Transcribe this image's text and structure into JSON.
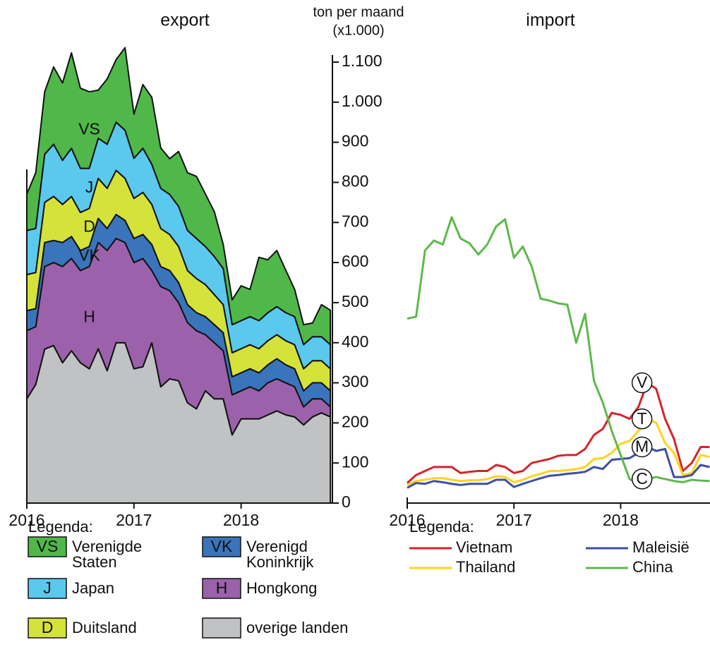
{
  "chart_data": [
    {
      "type": "stacked_area",
      "title": "export",
      "y_label_lines": [
        "ton per maand",
        "(x1.000)"
      ],
      "legend_title": "Legenda:",
      "categories": [
        "2016",
        null,
        null,
        null,
        null,
        null,
        null,
        null,
        null,
        null,
        null,
        null,
        "2017",
        null,
        null,
        null,
        null,
        null,
        null,
        null,
        null,
        null,
        null,
        null,
        "2018",
        null,
        null,
        null,
        null,
        null,
        null,
        null,
        null,
        null,
        null
      ],
      "ylim": [
        0,
        1100
      ],
      "yticks": [
        0,
        100,
        200,
        300,
        400,
        500,
        600,
        700,
        800,
        900,
        {
          "value": 1000,
          "label": "1.000"
        },
        {
          "value": 1100,
          "label": "1.100"
        }
      ],
      "series": [
        {
          "name": "overige landen",
          "color": "#c0c2c4",
          "values": [
            260,
            296,
            384,
            393,
            350,
            380,
            350,
            335,
            385,
            330,
            400,
            400,
            335,
            340,
            400,
            290,
            310,
            305,
            250,
            235,
            280,
            260,
            260,
            170,
            210,
            210,
            210,
            220,
            230,
            220,
            215,
            195,
            215,
            225,
            215
          ]
        },
        {
          "name": "Hongkong",
          "short": "H",
          "color": "#9b62ab",
          "values": [
            170,
            144,
            206,
            207,
            240,
            230,
            230,
            255,
            265,
            300,
            260,
            250,
            265,
            270,
            180,
            250,
            220,
            195,
            200,
            195,
            140,
            140,
            120,
            100,
            70,
            80,
            70,
            80,
            80,
            80,
            75,
            45,
            45,
            35,
            25
          ]
        },
        {
          "name": "Verenigd Koninkrijk",
          "short": "VK",
          "color": "#3a74bb",
          "values": [
            50,
            45,
            60,
            55,
            60,
            55,
            50,
            50,
            60,
            55,
            60,
            55,
            60,
            60,
            65,
            50,
            50,
            50,
            45,
            45,
            45,
            45,
            45,
            45,
            45,
            45,
            45,
            45,
            50,
            45,
            45,
            40,
            40,
            40,
            40
          ]
        },
        {
          "name": "Duitsland",
          "short": "D",
          "color": "#d4e23a",
          "values": [
            90,
            90,
            100,
            110,
            95,
            100,
            95,
            95,
            100,
            100,
            110,
            105,
            100,
            105,
            100,
            95,
            90,
            90,
            85,
            85,
            80,
            75,
            70,
            60,
            60,
            60,
            60,
            60,
            60,
            60,
            60,
            55,
            55,
            55,
            55
          ]
        },
        {
          "name": "Japan",
          "short": "J",
          "color": "#5bc8ee",
          "values": [
            110,
            110,
            120,
            130,
            110,
            120,
            110,
            100,
            100,
            110,
            120,
            120,
            100,
            110,
            100,
            100,
            100,
            100,
            100,
            100,
            95,
            95,
            90,
            70,
            70,
            70,
            70,
            70,
            70,
            70,
            70,
            60,
            60,
            60,
            60
          ]
        },
        {
          "name": "Verenigde Staten",
          "short": "VS",
          "color": "#4fb849",
          "values": [
            91,
            139,
            156,
            193,
            193,
            238,
            200,
            191,
            120,
            163,
            156,
            206,
            110,
            159,
            167,
            101,
            89,
            137,
            144,
            155,
            131,
            112,
            60,
            62,
            87,
            68,
            158,
            132,
            140,
            106,
            68,
            50,
            34,
            80,
            86
          ]
        }
      ]
    },
    {
      "type": "line",
      "title": "import",
      "legend_title": "Legenda:",
      "categories": [
        "2016",
        null,
        null,
        null,
        null,
        null,
        null,
        null,
        null,
        null,
        null,
        null,
        "2017",
        null,
        null,
        null,
        null,
        null,
        null,
        null,
        null,
        null,
        null,
        null,
        "2018",
        null,
        null,
        null,
        null,
        null,
        null,
        null,
        null,
        null,
        null
      ],
      "ylim": [
        0,
        1100
      ],
      "series": [
        {
          "name": "Vietnam",
          "label": "V",
          "color": "#d4252b",
          "values": [
            50,
            70,
            80,
            90,
            90,
            90,
            75,
            78,
            80,
            80,
            95,
            90,
            75,
            80,
            100,
            105,
            110,
            118,
            120,
            120,
            135,
            170,
            185,
            225,
            220,
            210,
            240,
            300,
            285,
            210,
            160,
            80,
            100,
            140,
            140
          ]
        },
        {
          "name": "Thailand",
          "label": "T",
          "color": "#ffd21f",
          "values": [
            45,
            55,
            58,
            62,
            62,
            58,
            55,
            57,
            57,
            60,
            67,
            65,
            52,
            58,
            67,
            73,
            80,
            80,
            82,
            85,
            90,
            110,
            112,
            125,
            148,
            155,
            180,
            210,
            200,
            150,
            125,
            70,
            75,
            120,
            115
          ]
        },
        {
          "name": "Maleisië",
          "label": "M",
          "color": "#3d4ea5",
          "values": [
            38,
            50,
            48,
            55,
            52,
            48,
            45,
            48,
            48,
            48,
            58,
            58,
            40,
            48,
            55,
            62,
            68,
            70,
            73,
            75,
            78,
            90,
            85,
            108,
            110,
            112,
            125,
            140,
            130,
            135,
            65,
            65,
            70,
            95,
            90
          ]
        },
        {
          "name": "China",
          "label": "C",
          "color": "#5cba4a",
          "values": [
            460,
            465,
            630,
            655,
            645,
            713,
            660,
            648,
            620,
            645,
            690,
            708,
            612,
            640,
            590,
            510,
            505,
            498,
            495,
            400,
            472,
            305,
            250,
            180,
            120,
            60,
            48,
            60,
            65,
            60,
            55,
            52,
            58,
            56,
            55
          ]
        }
      ]
    }
  ]
}
